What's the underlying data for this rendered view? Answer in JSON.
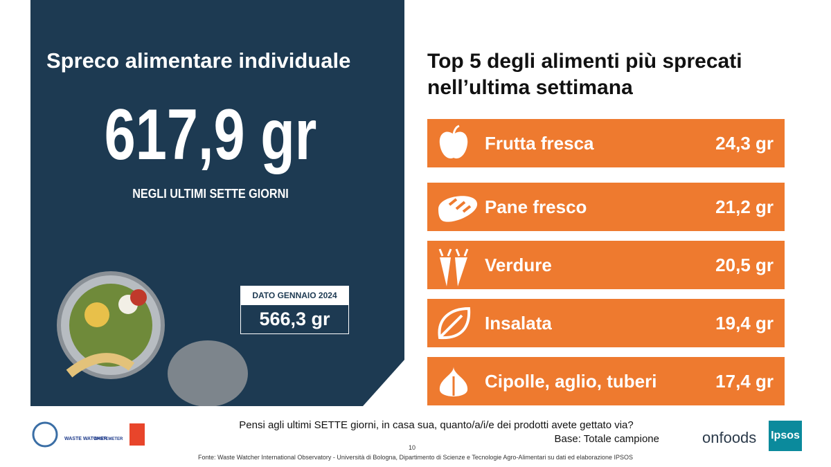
{
  "left_panel": {
    "title": "Spreco alimentare individuale",
    "headline": "617,9 gr",
    "subtitle": "NEGLI ULTIMI SETTE GIORNI",
    "comparison": {
      "label": "DATO GENNAIO 2024",
      "value": "566,3 gr"
    }
  },
  "right_panel": {
    "title": [
      "Top 5 degli alimenti più sprecati",
      "nell’ultima settimana"
    ],
    "items": [
      {
        "label": "Frutta fresca",
        "value": "24,3 gr"
      },
      {
        "label": "Pane fresco",
        "value": "21,2 gr"
      },
      {
        "label": "Verdure",
        "value": "20,5 gr"
      },
      {
        "label": "Insalata",
        "value": "19,4 gr"
      },
      {
        "label": "Cipolle, aglio, tuberi",
        "value": "17,4 gr"
      }
    ]
  },
  "footer": {
    "question": "Pensi agli ultimi SETTE giorni, in casa sua, quanto/a/i/e dei prodotti avete gettato via?",
    "base": "Base: Totale campione",
    "page_number": "10",
    "source": "Fonte: Waste Watcher International Observatory - Università di Bologna, Dipartimento di Scienze e Tecnologie Agro-Alimentari su dati ed elaborazione IPSOS"
  },
  "logos": {
    "waste_watcher": "WASTE WATCHER",
    "wastemeter": "WASTEMETER",
    "onfoods": "onfoods",
    "ipsos": "Ipsos"
  }
}
